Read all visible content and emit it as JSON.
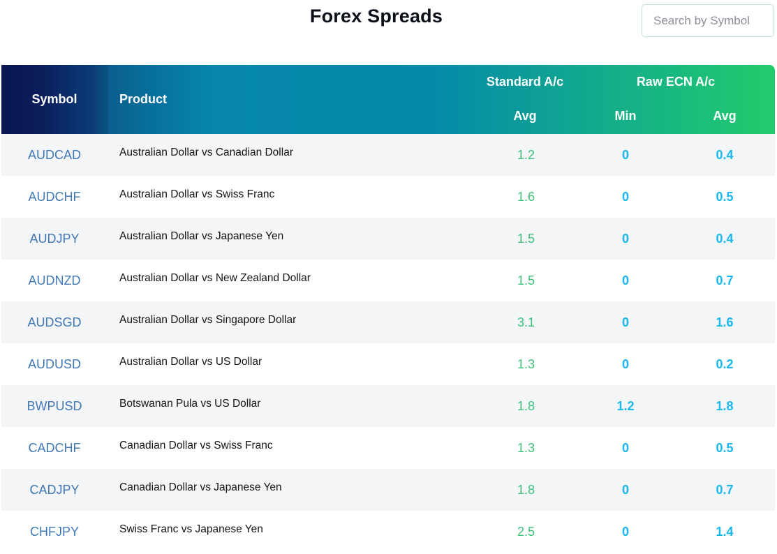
{
  "page": {
    "title": "Forex Spreads",
    "search_placeholder": "Search by Symbol"
  },
  "table": {
    "headers": {
      "symbol": "Symbol",
      "product": "Product",
      "standard_group": "Standard A/c",
      "raw_group": "Raw ECN A/c",
      "standard_avg": "Avg",
      "raw_min": "Min",
      "raw_avg": "Avg"
    },
    "rows": [
      {
        "symbol": "AUDCAD",
        "product": "Australian Dollar vs Canadian Dollar",
        "std_avg": "1.2",
        "raw_min": "0",
        "raw_avg": "0.4"
      },
      {
        "symbol": "AUDCHF",
        "product": "Australian Dollar vs Swiss Franc",
        "std_avg": "1.6",
        "raw_min": "0",
        "raw_avg": "0.5"
      },
      {
        "symbol": "AUDJPY",
        "product": "Australian Dollar vs Japanese Yen",
        "std_avg": "1.5",
        "raw_min": "0",
        "raw_avg": "0.4"
      },
      {
        "symbol": "AUDNZD",
        "product": "Australian Dollar vs New Zealand Dollar",
        "std_avg": "1.5",
        "raw_min": "0",
        "raw_avg": "0.7"
      },
      {
        "symbol": "AUDSGD",
        "product": "Australian Dollar vs Singapore Dollar",
        "std_avg": "3.1",
        "raw_min": "0",
        "raw_avg": "1.6"
      },
      {
        "symbol": "AUDUSD",
        "product": "Australian Dollar vs US Dollar",
        "std_avg": "1.3",
        "raw_min": "0",
        "raw_avg": "0.2"
      },
      {
        "symbol": "BWPUSD",
        "product": "Botswanan Pula vs US Dollar",
        "std_avg": "1.8",
        "raw_min": "1.2",
        "raw_avg": "1.8"
      },
      {
        "symbol": "CADCHF",
        "product": "Canadian Dollar vs Swiss Franc",
        "std_avg": "1.3",
        "raw_min": "0",
        "raw_avg": "0.5"
      },
      {
        "symbol": "CADJPY",
        "product": "Canadian Dollar vs Japanese Yen",
        "std_avg": "1.8",
        "raw_min": "0",
        "raw_avg": "0.7"
      },
      {
        "symbol": "CHFJPY",
        "product": "Swiss Franc vs Japanese Yen",
        "std_avg": "2.5",
        "raw_min": "0",
        "raw_avg": "1.4"
      }
    ]
  },
  "colors": {
    "symbol_link": "#3f78b5",
    "standard_value": "#3cc27a",
    "raw_value": "#1ab8ea",
    "header_gradient_start": "#0b1b52",
    "header_gradient_end": "#22cc6c"
  }
}
